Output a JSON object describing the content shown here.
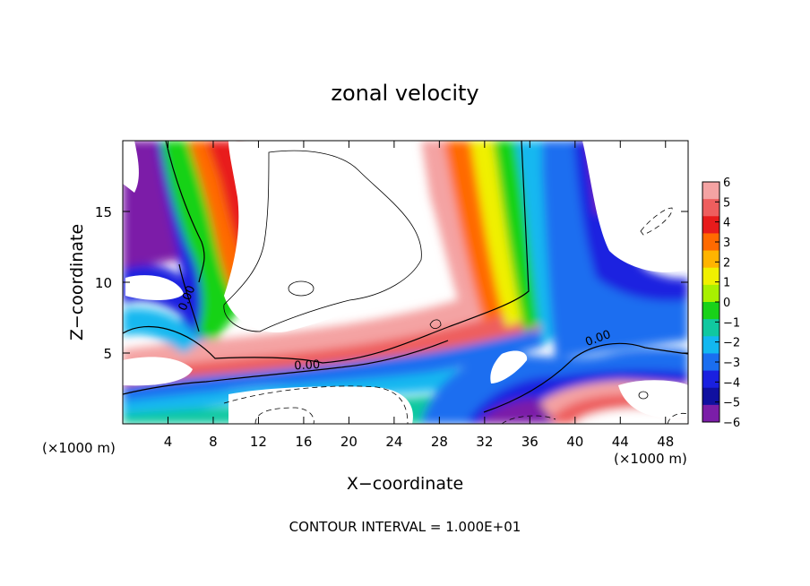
{
  "chart_data": {
    "type": "heatmap",
    "title": "zonal velocity",
    "xlabel": "X−coordinate",
    "ylabel": "Z−coordinate",
    "x_unit_note": "(×1000 m)",
    "y_unit_note": "(×1000 m)",
    "footer": "CONTOUR INTERVAL = 1.000E+01",
    "xlim": [
      0,
      50
    ],
    "ylim": [
      0,
      20
    ],
    "x_ticks": [
      4,
      8,
      12,
      16,
      20,
      24,
      28,
      32,
      36,
      40,
      44,
      48
    ],
    "y_ticks": [
      5,
      10,
      15
    ],
    "colorbar": {
      "levels": [
        6,
        5,
        4,
        3,
        2,
        1,
        0,
        -1,
        -2,
        -3,
        -4,
        -5,
        -6
      ],
      "labels": [
        "6",
        "5",
        "4",
        "3",
        "2",
        "1",
        "0",
        "−1",
        "−2",
        "−3",
        "−4",
        "−5",
        "−6"
      ],
      "colors": [
        "#f4a3a3",
        "#ee5e5e",
        "#e81b1b",
        "#ff6a00",
        "#ffb400",
        "#f0f000",
        "#a8f000",
        "#19d219",
        "#10c8a0",
        "#12b8f0",
        "#1a6ef0",
        "#1a20e0",
        "#1010a0",
        "#7b1ea8"
      ]
    },
    "contour_labels": [
      {
        "text": "0.00",
        "x": 5.6,
        "z": 8.9,
        "angle": -68
      },
      {
        "text": "0.00",
        "x": 16.3,
        "z": 4.2,
        "angle": -3
      },
      {
        "text": "0.00",
        "x": 42.0,
        "z": 6.1,
        "angle": -20
      }
    ]
  }
}
